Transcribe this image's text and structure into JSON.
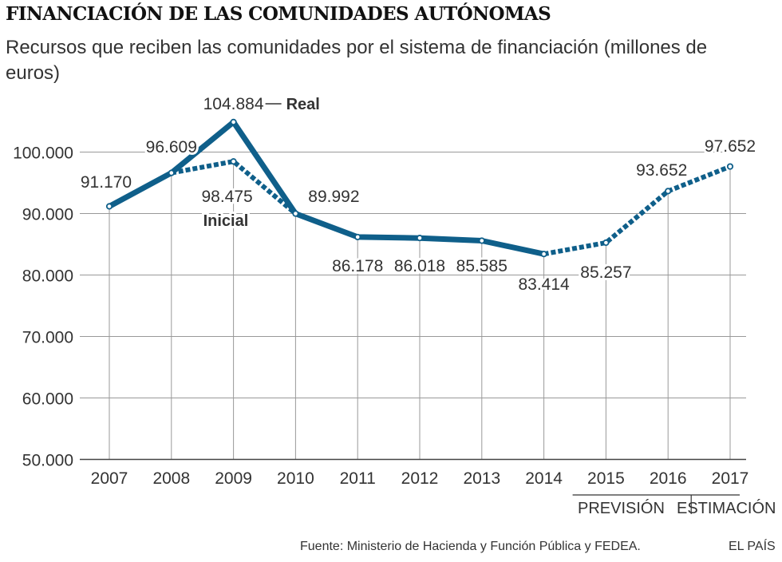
{
  "header": {
    "title": "FINANCIACIÓN DE LAS COMUNIDADES AUTÓNOMAS",
    "subtitle": "Recursos que reciben las comunidades por el sistema de financiación (millones de euros)"
  },
  "footer": {
    "source": "Fuente: Ministerio de Hacienda y Función Pública y FEDEA.",
    "brand": "EL PAÍS"
  },
  "colors": {
    "line": "#0f5f8a",
    "grid": "#999999",
    "text": "#333333"
  },
  "chart_data": {
    "type": "line",
    "title": "FINANCIACIÓN DE LAS COMUNIDADES AUTÓNOMAS",
    "xlabel": "",
    "ylabel": "",
    "ylim": [
      50000,
      107000
    ],
    "yticks": [
      50000,
      60000,
      70000,
      80000,
      90000,
      100000
    ],
    "ytick_labels": [
      "50.000",
      "60.000",
      "70.000",
      "80.000",
      "90.000",
      "100.000"
    ],
    "categories": [
      "2007",
      "2008",
      "2009",
      "2010",
      "2011",
      "2012",
      "2013",
      "2014",
      "2015",
      "2016",
      "2017"
    ],
    "series": [
      {
        "name": "Real",
        "style": "solid",
        "x": [
          "2007",
          "2008",
          "2009",
          "2010",
          "2011",
          "2012",
          "2013",
          "2014"
        ],
        "values": [
          91170,
          96609,
          104884,
          89992,
          86178,
          86018,
          85585,
          83414
        ]
      },
      {
        "name": "Inicial",
        "style": "dotted",
        "x": [
          "2008",
          "2009",
          "2010"
        ],
        "values": [
          96609,
          98475,
          89992
        ]
      },
      {
        "name": "Previsión / Estimación",
        "style": "dotted",
        "x": [
          "2014",
          "2015",
          "2016",
          "2017"
        ],
        "values": [
          83414,
          85257,
          93652,
          97652
        ]
      }
    ],
    "data_labels": [
      {
        "x": "2007",
        "value": 91170,
        "text": "91.170"
      },
      {
        "x": "2008",
        "value": 96609,
        "text": "96.609"
      },
      {
        "x": "2009",
        "value": 104884,
        "text": "104.884"
      },
      {
        "x": "2009",
        "value": 98475,
        "text": "98.475"
      },
      {
        "x": "2010",
        "value": 89992,
        "text": "89.992"
      },
      {
        "x": "2011",
        "value": 86178,
        "text": "86.178"
      },
      {
        "x": "2012",
        "value": 86018,
        "text": "86.018"
      },
      {
        "x": "2013",
        "value": 85585,
        "text": "85.585"
      },
      {
        "x": "2014",
        "value": 83414,
        "text": "83.414"
      },
      {
        "x": "2015",
        "value": 85257,
        "text": "85.257"
      },
      {
        "x": "2016",
        "value": 93652,
        "text": "93.652"
      },
      {
        "x": "2017",
        "value": 97652,
        "text": "97.652"
      }
    ],
    "series_labels": {
      "real": "Real",
      "inicial": "Inicial"
    },
    "period_labels": {
      "prevision": "PREVISIÓN",
      "estimacion": "ESTIMACIÓN"
    }
  }
}
